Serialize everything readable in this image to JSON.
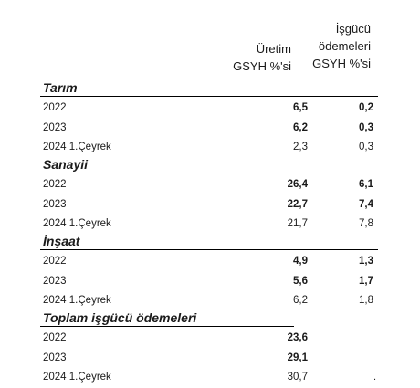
{
  "headers": {
    "col1": [
      "Üretim",
      "GSYH %'si"
    ],
    "col2": [
      "İşgücü",
      "ödemeleri",
      "GSYH %'si"
    ]
  },
  "sections": [
    {
      "title": "Tarım",
      "rows": [
        {
          "period": "2022",
          "v1": "6,5",
          "v2": "0,2"
        },
        {
          "period": "2023",
          "v1": "6,2",
          "v2": "0,3"
        },
        {
          "period": "2024 1.Çeyrek",
          "v1": "2,3",
          "v2": "0,3"
        }
      ]
    },
    {
      "title": "Sanayii",
      "rows": [
        {
          "period": "2022",
          "v1": "26,4",
          "v2": "6,1"
        },
        {
          "period": "2023",
          "v1": "22,7",
          "v2": "7,4"
        },
        {
          "period": "2024 1.Çeyrek",
          "v1": "21,7",
          "v2": "7,8"
        }
      ]
    },
    {
      "title": "İnşaat",
      "rows": [
        {
          "period": "2022",
          "v1": "4,9",
          "v2": "1,3"
        },
        {
          "period": "2023",
          "v1": "5,6",
          "v2": "1,7"
        },
        {
          "period": "2024 1.Çeyrek",
          "v1": "6,2",
          "v2": "1,8"
        }
      ]
    },
    {
      "title": "Toplam işgücü ödemeleri",
      "rows": [
        {
          "period": "2022",
          "v1": "23,6",
          "v2": ""
        },
        {
          "period": "2023",
          "v1": "29,1",
          "v2": ""
        },
        {
          "period": "2024 1.Çeyrek",
          "v1": "30,7",
          "v2": ""
        }
      ]
    }
  ],
  "footer_mark": "."
}
